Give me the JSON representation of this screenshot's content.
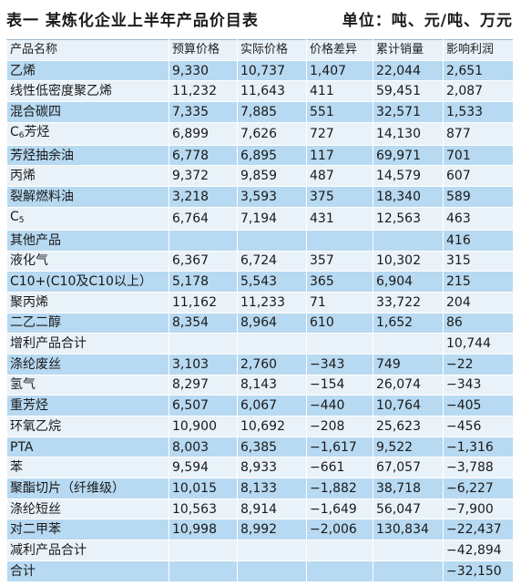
{
  "title": {
    "left": "表一  某炼化企业上半年产品价目表",
    "right": "单位：吨、元/吨、万元"
  },
  "table": {
    "headers": [
      "产品名称",
      "预算价格",
      "实际价格",
      "价格差异",
      "累计销量",
      "影响利润"
    ],
    "rows": [
      {
        "name": "乙烯",
        "budget": "9,330",
        "actual": "10,737",
        "diff": "1,407",
        "volume": "22,044",
        "profit": "2,651"
      },
      {
        "name": "线性低密度聚乙烯",
        "budget": "11,232",
        "actual": "11,643",
        "diff": "411",
        "volume": "59,451",
        "profit": "2,087"
      },
      {
        "name": "混合碳四",
        "budget": "7,335",
        "actual": "7,885",
        "diff": "551",
        "volume": "32,571",
        "profit": "1,533"
      },
      {
        "name": "C6芳烃",
        "name_main": "C",
        "name_sub": "6",
        "name_rest": "芳烃",
        "budget": "6,899",
        "actual": "7,626",
        "diff": "727",
        "volume": "14,130",
        "profit": "877"
      },
      {
        "name": "芳烃抽余油",
        "budget": "6,778",
        "actual": "6,895",
        "diff": "117",
        "volume": "69,971",
        "profit": "701"
      },
      {
        "name": "丙烯",
        "budget": "9,372",
        "actual": "9,859",
        "diff": "487",
        "volume": "14,579",
        "profit": "607"
      },
      {
        "name": "裂解燃料油",
        "budget": "3,218",
        "actual": "3,593",
        "diff": "375",
        "volume": "18,340",
        "profit": "589"
      },
      {
        "name": "C5",
        "name_main": "C",
        "name_sub": "5",
        "name_rest": "",
        "budget": "6,764",
        "actual": "7,194",
        "diff": "431",
        "volume": "12,563",
        "profit": "463"
      },
      {
        "name": "其他产品",
        "budget": "",
        "actual": "",
        "diff": "",
        "volume": "",
        "profit": "416"
      },
      {
        "name": "液化气",
        "budget": "6,367",
        "actual": "6,724",
        "diff": "357",
        "volume": "10,302",
        "profit": "315"
      },
      {
        "name": "C10+(C10及C10以上）",
        "budget": "5,178",
        "actual": "5,543",
        "diff": "365",
        "volume": "6,904",
        "profit": "215"
      },
      {
        "name": "聚丙烯",
        "budget": "11,162",
        "actual": "11,233",
        "diff": "71",
        "volume": "33,722",
        "profit": "204"
      },
      {
        "name": "二乙二醇",
        "budget": "8,354",
        "actual": "8,964",
        "diff": "610",
        "volume": "1,652",
        "profit": "86"
      },
      {
        "name": "增利产品合计",
        "budget": "",
        "actual": "",
        "diff": "",
        "volume": "",
        "profit": "10,744"
      },
      {
        "name": "涤纶废丝",
        "budget": "3,103",
        "actual": "2,760",
        "diff": "−343",
        "volume": "749",
        "profit": "−22"
      },
      {
        "name": "氢气",
        "budget": "8,297",
        "actual": "8,143",
        "diff": "−154",
        "volume": "26,074",
        "profit": "−343"
      },
      {
        "name": "重芳烃",
        "budget": "6,507",
        "actual": "6,067",
        "diff": "−440",
        "volume": "10,764",
        "profit": "−405"
      },
      {
        "name": "环氧乙烷",
        "budget": "10,900",
        "actual": "10,692",
        "diff": "−208",
        "volume": "25,623",
        "profit": "−456"
      },
      {
        "name": "PTA",
        "budget": "8,003",
        "actual": "6,385",
        "diff": "−1,617",
        "volume": "9,522",
        "profit": "−1,316"
      },
      {
        "name": "苯",
        "budget": "9,594",
        "actual": "8,933",
        "diff": "−661",
        "volume": "67,057",
        "profit": "−3,788"
      },
      {
        "name": "聚酯切片（纤维级）",
        "budget": "10,015",
        "actual": "8,133",
        "diff": "−1,882",
        "volume": "38,718",
        "profit": "−6,227"
      },
      {
        "name": "涤纶短丝",
        "budget": "10,563",
        "actual": "8,914",
        "diff": "−1,649",
        "volume": "56,047",
        "profit": "−7,900"
      },
      {
        "name": "对二甲苯",
        "budget": "10,998",
        "actual": "8,992",
        "diff": "−2,006",
        "volume": "130,834",
        "profit": "−22,437"
      },
      {
        "name": "减利产品合计",
        "budget": "",
        "actual": "",
        "diff": "",
        "volume": "",
        "profit": "−42,894"
      },
      {
        "name": "合计",
        "budget": "",
        "actual": "",
        "diff": "",
        "volume": "",
        "profit": "−32,150"
      }
    ]
  },
  "colors": {
    "row_blue": "#b7d9f1",
    "row_light": "#eaf2f9"
  }
}
